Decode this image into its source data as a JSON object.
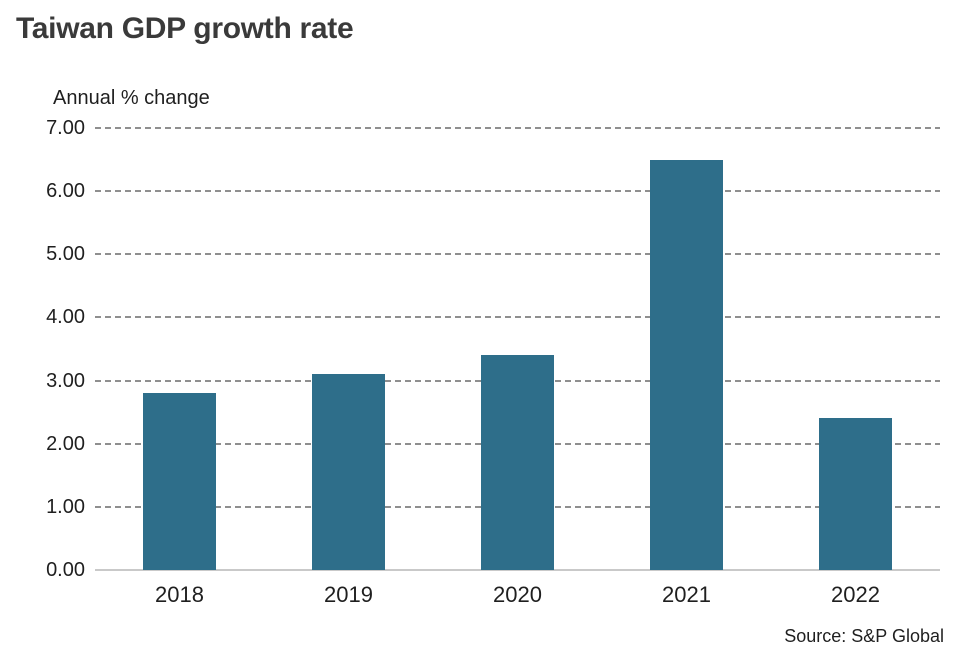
{
  "colors": {
    "bar": "#2e6e8a",
    "grid": "#8f8f8f",
    "baseline": "#c9c9c9",
    "title_text": "#3a3a3a",
    "text": "#1f1f1f"
  },
  "chart_data": {
    "type": "bar",
    "title": "Taiwan GDP growth rate",
    "ylabel": "Annual % change",
    "xlabel": "",
    "categories": [
      "2018",
      "2019",
      "2020",
      "2021",
      "2022"
    ],
    "values": [
      2.8,
      3.1,
      3.4,
      6.5,
      2.4
    ],
    "ylim": [
      0,
      7
    ],
    "ytick_labels": [
      "7.00",
      "6.00",
      "5.00",
      "4.00",
      "3.00",
      "2.00",
      "1.00",
      "0.00"
    ],
    "grid": "dashed horizontal gridlines, solid light baseline at 0",
    "legend": "none",
    "source": "Source: S&P Global"
  }
}
